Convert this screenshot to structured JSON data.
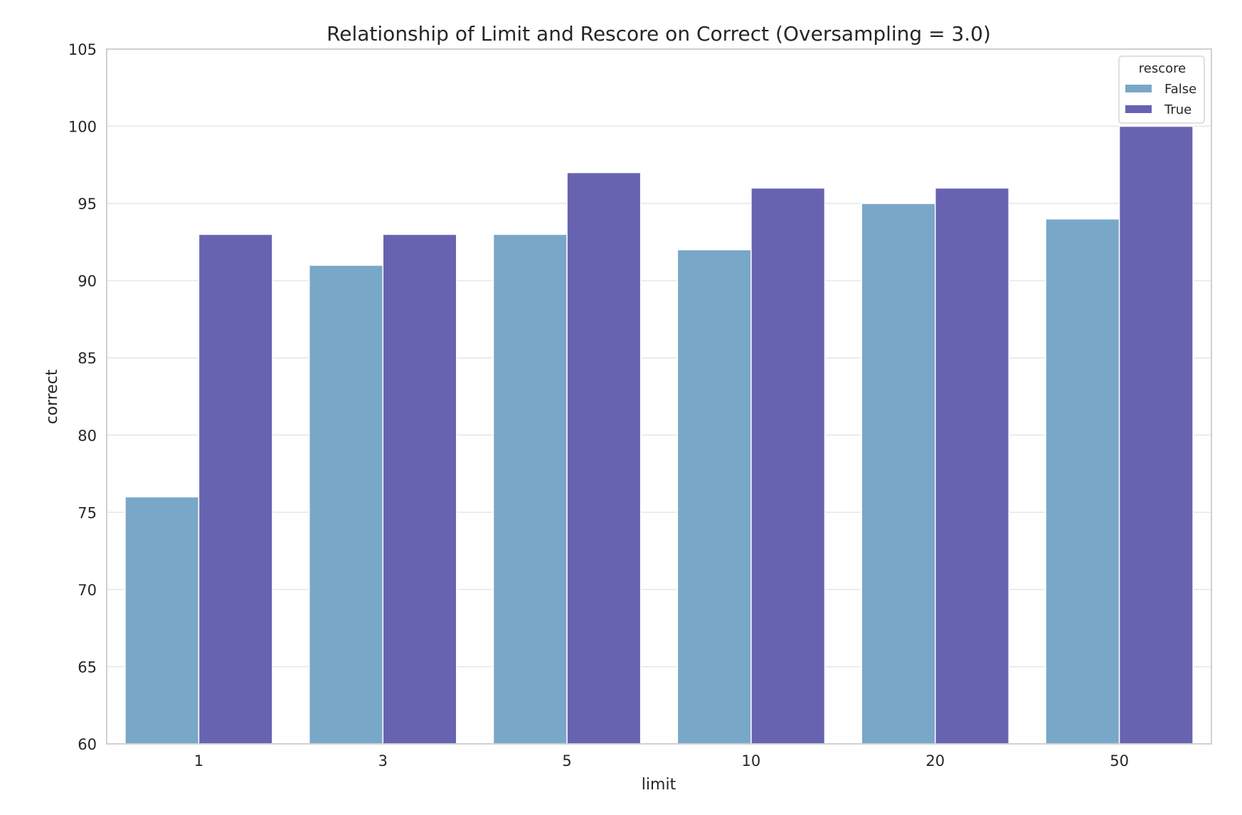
{
  "chart_data": {
    "type": "bar",
    "title": "Relationship of Limit and Rescore on Correct (Oversampling = 3.0)",
    "xlabel": "limit",
    "ylabel": "correct",
    "categories": [
      "1",
      "3",
      "5",
      "10",
      "20",
      "50"
    ],
    "ylim": [
      60,
      105
    ],
    "yticks": [
      "60",
      "65",
      "70",
      "75",
      "80",
      "85",
      "90",
      "95",
      "100",
      "105"
    ],
    "grid": true,
    "legend": {
      "title": "rescore",
      "placement": "top-right"
    },
    "series": [
      {
        "name": "False",
        "color": "#79a7c8",
        "values": [
          76,
          91,
          93,
          92,
          95,
          94
        ]
      },
      {
        "name": "True",
        "color": "#6763b0",
        "values": [
          93,
          93,
          97,
          96,
          96,
          100
        ]
      }
    ]
  }
}
